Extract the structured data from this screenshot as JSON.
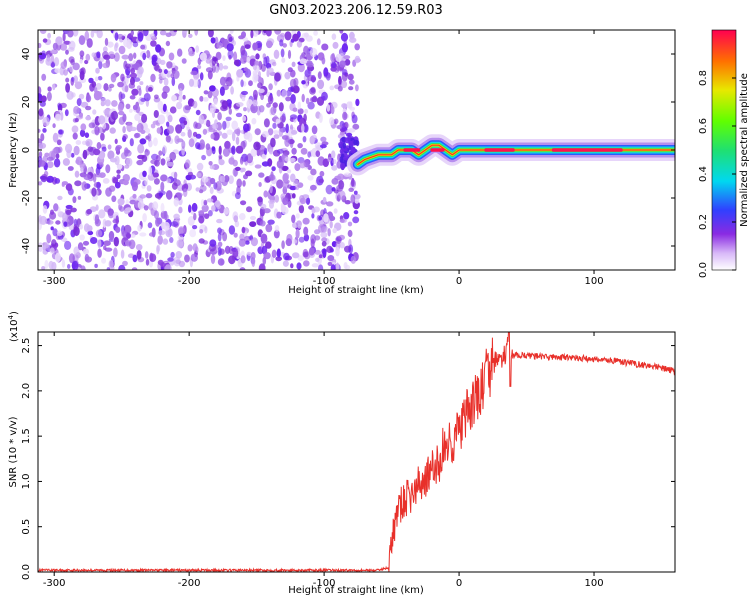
{
  "title": "GN03.2023.206.12.59.R03",
  "chart_data": [
    {
      "type": "heatmap",
      "xlabel": "Height of straight line (km)",
      "ylabel": "Frequency (Hz)",
      "xlim": [
        -312,
        160
      ],
      "ylim": [
        -50,
        50
      ],
      "xticks": [
        -300,
        -200,
        -100,
        0,
        100
      ],
      "yticks": [
        -40,
        -20,
        0,
        20,
        40
      ],
      "noise_region_x": [
        -312,
        -75
      ],
      "ridge": {
        "x": [
          -75,
          -70,
          -60,
          -50,
          -45,
          -40,
          -35,
          -30,
          -25,
          -20,
          -15,
          -10,
          -5,
          0,
          5,
          10,
          20,
          40,
          60,
          80,
          100,
          120,
          140,
          160
        ],
        "freq": [
          -6,
          -4,
          -2,
          -2,
          0,
          0,
          0,
          -2,
          0,
          2,
          2,
          0,
          -2,
          0,
          0,
          0,
          0,
          0,
          0,
          0,
          0,
          0,
          0,
          0
        ]
      },
      "colorbar": {
        "label": "Normalized spectral amplitude",
        "range": [
          0.0,
          1.0
        ],
        "ticks": [
          "0.0",
          "0.2",
          "0.4",
          "0.6",
          "0.8"
        ]
      }
    },
    {
      "type": "line",
      "xlabel": "Height of straight line (km)",
      "ylabel": "SNR (10 * v/v)",
      "scale_note": "(x10",
      "scale_exp": "4",
      "scale_close": ")",
      "xlim": [
        -312,
        160
      ],
      "ylim": [
        0,
        2.65
      ],
      "xticks": [
        -300,
        -200,
        -100,
        0,
        100
      ],
      "yticks": [
        "0.0",
        "0.5",
        "1.0",
        "1.5",
        "2.0",
        "2.5"
      ],
      "series": [
        {
          "color": "#e8302a",
          "x": [
            -312,
            -200,
            -100,
            -60,
            -52,
            -50,
            -48,
            -45,
            -40,
            -35,
            -30,
            -25,
            -20,
            -15,
            -12,
            -10,
            -5,
            0,
            5,
            10,
            15,
            20,
            25,
            30,
            35,
            37,
            38,
            40,
            50,
            60,
            70,
            80,
            90,
            100,
            110,
            120,
            130,
            140,
            150,
            160
          ],
          "y": [
            0.02,
            0.02,
            0.02,
            0.02,
            0.05,
            0.3,
            0.5,
            0.7,
            0.8,
            0.85,
            0.95,
            1.05,
            1.1,
            1.2,
            1.35,
            1.4,
            1.45,
            1.55,
            1.7,
            1.85,
            1.95,
            2.15,
            2.3,
            2.35,
            2.4,
            2.65,
            2.2,
            2.4,
            2.39,
            2.38,
            2.37,
            2.37,
            2.36,
            2.35,
            2.34,
            2.32,
            2.3,
            2.28,
            2.25,
            2.22
          ]
        }
      ]
    }
  ]
}
